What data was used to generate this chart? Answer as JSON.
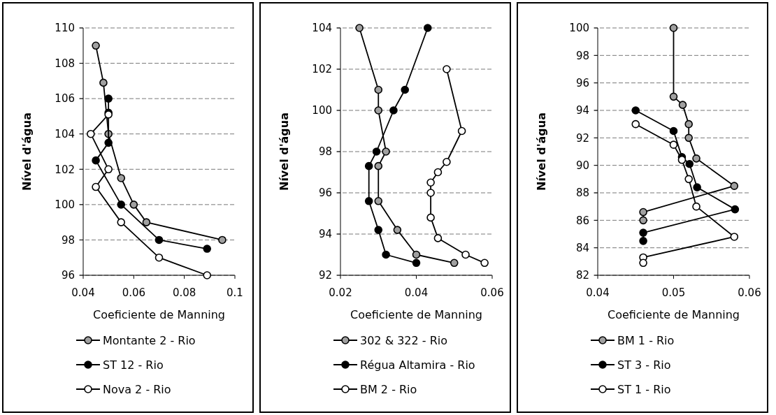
{
  "chart_data": [
    {
      "type": "line",
      "xlabel": "Coeficiente de Manning",
      "ylabel": "Nível d'água",
      "xlim": [
        0.04,
        0.1
      ],
      "xticks": [
        0.04,
        0.06,
        0.08,
        0.1
      ],
      "ylim": [
        96,
        110
      ],
      "yticks": [
        96,
        98,
        100,
        102,
        104,
        106,
        108,
        110
      ],
      "grid": "y",
      "legend": "bottom",
      "marker": "circle",
      "series": [
        {
          "name": "Montante 2 - Rio",
          "color": "#a0a0a0",
          "x": [
            0.045,
            0.048,
            0.05,
            0.055,
            0.06,
            0.065,
            0.095
          ],
          "values": [
            109,
            106.9,
            104,
            101.5,
            100,
            99,
            98
          ]
        },
        {
          "name": "ST 12 - Rio",
          "color": "#000000",
          "x": [
            0.05,
            0.05,
            0.05,
            0.045,
            0.055,
            0.07,
            0.089
          ],
          "values": [
            106,
            105.2,
            103.5,
            102.5,
            100,
            98,
            97.5
          ]
        },
        {
          "name": "Nova 2 - Rio",
          "color": "#ffffff",
          "x": [
            0.05,
            0.043,
            0.05,
            0.045,
            0.055,
            0.07,
            0.089
          ],
          "values": [
            105.1,
            104,
            102,
            101,
            99,
            97,
            96
          ]
        }
      ]
    },
    {
      "type": "line",
      "xlabel": "Coeficiente de Manning",
      "ylabel": "Nível d'água",
      "xlim": [
        0.02,
        0.06
      ],
      "xticks": [
        0.02,
        0.04,
        0.06
      ],
      "ylim": [
        92,
        104
      ],
      "yticks": [
        92,
        94,
        96,
        98,
        100,
        102,
        104
      ],
      "grid": "y",
      "legend": "bottom",
      "marker": "circle",
      "series": [
        {
          "name": "302 & 322 - Rio",
          "color": "#a0a0a0",
          "x": [
            0.025,
            0.03,
            0.03,
            0.032,
            0.03,
            0.03,
            0.035,
            0.04,
            0.05
          ],
          "values": [
            104,
            101,
            100,
            98,
            97.3,
            95.6,
            94.2,
            93,
            92.6
          ]
        },
        {
          "name": "Régua Altamira - Rio",
          "color": "#000000",
          "x": [
            0.043,
            0.037,
            0.034,
            0.0295,
            0.0275,
            0.0275,
            0.03,
            0.032,
            0.04
          ],
          "values": [
            104,
            101,
            100,
            98,
            97.3,
            95.6,
            94.2,
            93,
            92.6
          ]
        },
        {
          "name": "BM 2 - Rio",
          "color": "#ffffff",
          "x": [
            0.048,
            0.052,
            0.048,
            0.0457,
            0.0438,
            0.0438,
            0.0438,
            0.0457,
            0.053,
            0.058
          ],
          "values": [
            102,
            99,
            97.5,
            97,
            96.5,
            96,
            94.8,
            93.8,
            93,
            92.6
          ]
        }
      ]
    },
    {
      "type": "line",
      "xlabel": "Coeficiente de Manning",
      "ylabel": "Nível d'água",
      "xlim": [
        0.04,
        0.06
      ],
      "xticks": [
        0.04,
        0.05,
        0.06
      ],
      "ylim": [
        82,
        100
      ],
      "yticks": [
        82,
        84,
        86,
        88,
        90,
        92,
        94,
        96,
        98,
        100
      ],
      "grid": "y",
      "legend": "bottom",
      "marker": "circle",
      "series": [
        {
          "name": "BM 1 - Rio",
          "color": "#a0a0a0",
          "x": [
            0.05,
            0.05,
            0.0512,
            0.052,
            0.052,
            0.053,
            0.058,
            0.046,
            0.046
          ],
          "values": [
            100,
            95,
            94.4,
            93,
            92,
            90.5,
            88.5,
            86.6,
            86
          ]
        },
        {
          "name": "ST 3 - Rio",
          "color": "#000000",
          "x": [
            0.045,
            0.05,
            0.0511,
            0.0521,
            0.0531,
            0.0581,
            0.046,
            0.046
          ],
          "values": [
            94,
            92.5,
            90.6,
            90.1,
            88.4,
            86.8,
            85.1,
            84.5
          ]
        },
        {
          "name": "ST 1 - Rio",
          "color": "#ffffff",
          "x": [
            0.045,
            0.05,
            0.0511,
            0.052,
            0.053,
            0.058,
            0.046,
            0.046
          ],
          "values": [
            93,
            91.5,
            90.4,
            89,
            87,
            84.8,
            83.3,
            82.9
          ]
        }
      ]
    }
  ]
}
